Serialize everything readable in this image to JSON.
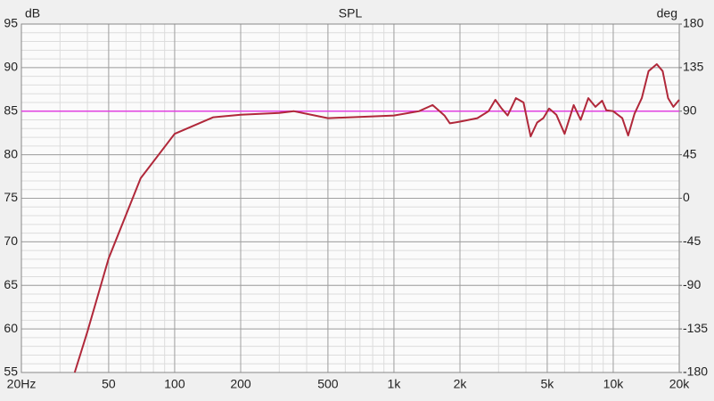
{
  "chart_data": {
    "type": "line",
    "title": "SPL",
    "y_label": "dB",
    "y2_label": "deg",
    "x": [
      35,
      40,
      50,
      70,
      100,
      150,
      200,
      300,
      350,
      500,
      800,
      1000,
      1300,
      1500,
      1700,
      1800,
      2000,
      2400,
      2700,
      2900,
      3100,
      3300,
      3600,
      3900,
      4200,
      4500,
      4800,
      5100,
      5500,
      6000,
      6600,
      7100,
      7700,
      8300,
      8900,
      9300,
      10000,
      11000,
      11700,
      12500,
      13500,
      14500,
      15800,
      16800,
      17800,
      18800,
      20000
    ],
    "series": [
      {
        "color": "#b0283a",
        "values": [
          55,
          59.7,
          68.1,
          77.3,
          82.4,
          84.3,
          84.6,
          84.8,
          85.0,
          84.2,
          84.4,
          84.5,
          85.0,
          85.7,
          84.5,
          83.6,
          83.8,
          84.2,
          85.0,
          86.3,
          85.3,
          84.5,
          86.5,
          86.0,
          82.1,
          83.7,
          84.2,
          85.3,
          84.6,
          82.4,
          85.7,
          84.0,
          86.5,
          85.5,
          86.2,
          85.1,
          85.0,
          84.2,
          82.2,
          84.7,
          86.5,
          89.6,
          90.4,
          89.6,
          86.5,
          85.5,
          86.3
        ]
      }
    ],
    "reference_line": {
      "value": 85,
      "color": "#e040e0"
    },
    "log_x": true,
    "xlim": [
      20,
      20000
    ],
    "xticks": [
      {
        "value": 20,
        "label": "20Hz"
      },
      50,
      100,
      200,
      500,
      {
        "value": 1000,
        "label": "1k"
      },
      {
        "value": 2000,
        "label": "2k"
      },
      {
        "value": 5000,
        "label": "5k"
      },
      {
        "value": 10000,
        "label": "10k"
      },
      {
        "value": 20000,
        "label": "20k"
      }
    ],
    "ylim": [
      55,
      95
    ],
    "yticks": [
      55,
      60,
      65,
      70,
      75,
      80,
      85,
      90,
      95
    ],
    "y2lim": [
      -180,
      180
    ],
    "y2ticks": [
      -180,
      -135,
      -90,
      -45,
      0,
      45,
      90,
      135,
      180
    ],
    "grid": true
  }
}
